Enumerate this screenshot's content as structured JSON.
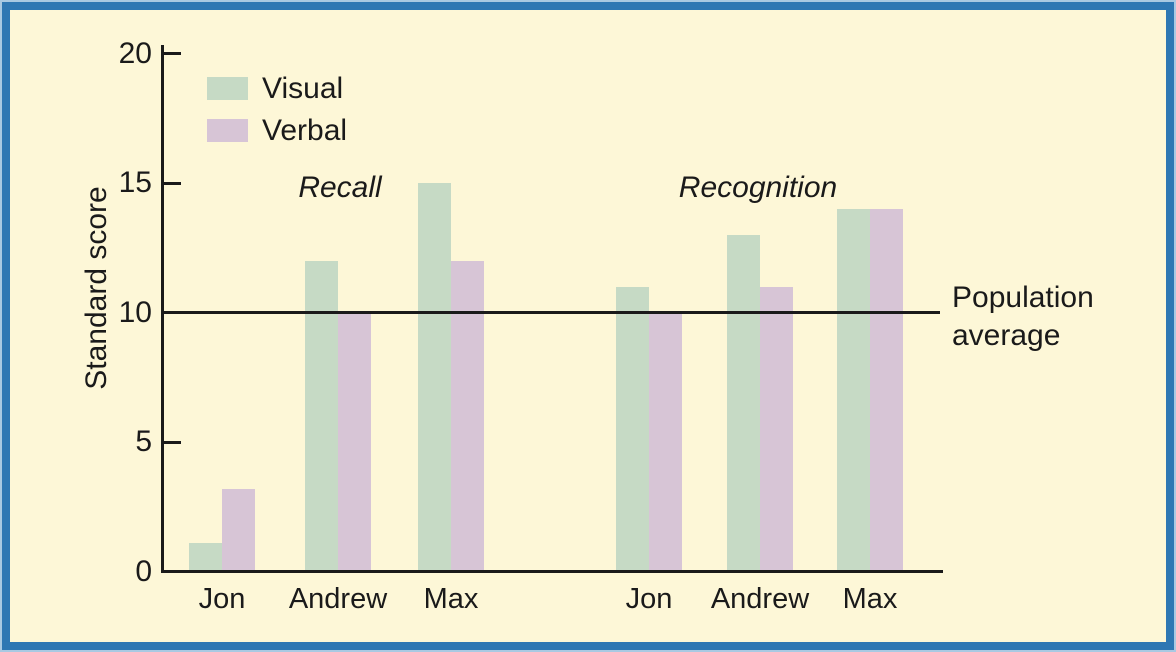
{
  "frame": {
    "background_color": "#fdf7d7",
    "border_color": "#2e77b3"
  },
  "chart_data": {
    "type": "bar",
    "ylabel": "Standard score",
    "ylim": [
      0,
      20
    ],
    "yticks": [
      0,
      5,
      10,
      15,
      20
    ],
    "grid": false,
    "legend_position": "top-left",
    "series_colors": {
      "Visual": "#c6dac5",
      "Verbal": "#d7c5d6"
    },
    "legend": [
      "Visual",
      "Verbal"
    ],
    "groups": [
      {
        "label": "Recall",
        "categories": [
          "Jon",
          "Andrew",
          "Max"
        ],
        "series": [
          {
            "name": "Visual",
            "values": [
              1.1,
              12,
              15
            ]
          },
          {
            "name": "Verbal",
            "values": [
              3.2,
              10,
              12
            ]
          }
        ]
      },
      {
        "label": "Recognition",
        "categories": [
          "Jon",
          "Andrew",
          "Max"
        ],
        "series": [
          {
            "name": "Visual",
            "values": [
              11,
              13,
              14
            ]
          },
          {
            "name": "Verbal",
            "values": [
              10,
              11,
              14
            ]
          }
        ]
      }
    ],
    "reference_line": {
      "value": 10,
      "label": "Population average"
    }
  }
}
